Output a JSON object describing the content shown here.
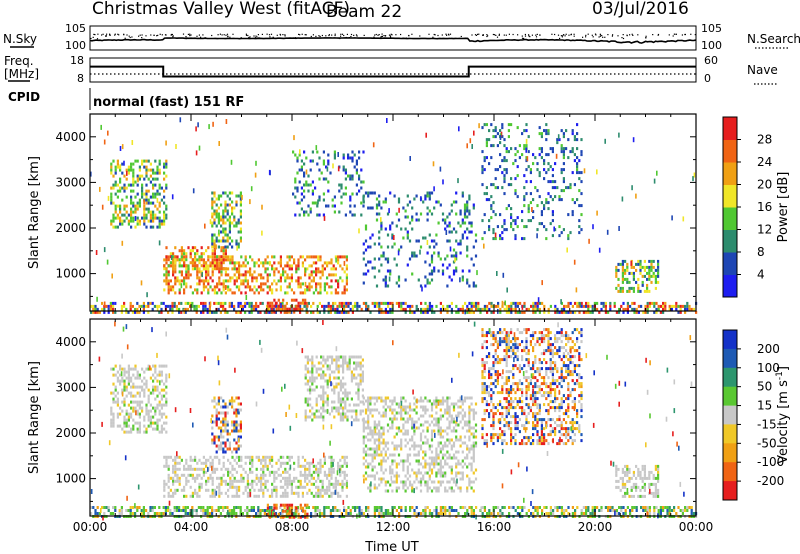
{
  "header": {
    "station": "Christmas Valley West (fitACF)",
    "beam": "Beam 22",
    "date": "03/Jul/2016"
  },
  "labels": {
    "nsky": "N.Sky",
    "nsearch": "N.Search",
    "freq": "Freq.",
    "freq_unit": "[MHz]",
    "nave": "Nave",
    "cpid": "CPID",
    "cpid_value": "normal (fast) 151 RF",
    "time_axis": "Time UT",
    "nsky_ticks": [
      "10^5",
      "10^0"
    ],
    "nsearch_ticks": [
      "10^5",
      "10^0"
    ],
    "freq_ticks": [
      "18",
      "8"
    ],
    "nave_ticks": [
      "60",
      "0"
    ]
  },
  "chart_data": [
    {
      "type": "line",
      "panel": "noise",
      "series": [
        {
          "name": "N.Sky",
          "style": "solid"
        },
        {
          "name": "N.Search",
          "style": "dotted"
        }
      ],
      "y_scale": "log",
      "ylim": [
        1,
        100000
      ]
    },
    {
      "type": "line",
      "panel": "frequency",
      "series": [
        {
          "name": "Freq.",
          "style": "solid",
          "steps": [
            [
              0,
              14.4
            ],
            [
              2.9,
              10.3
            ],
            [
              15.0,
              14.4
            ],
            [
              24.0,
              14.4
            ]
          ]
        },
        {
          "name": "Nave",
          "style": "dotted",
          "steps": [
            [
              0,
              20
            ],
            [
              24,
              20
            ]
          ]
        }
      ],
      "y_left": [
        8,
        18
      ],
      "y_right": [
        0,
        60
      ]
    },
    {
      "type": "heatmap",
      "panel": "power",
      "ylabel": "Slant Range [km]",
      "xlabel": "",
      "xlim": [
        0,
        24
      ],
      "ylim": [
        180,
        4500
      ],
      "x_ticks": [
        "00:00",
        "04:00",
        "08:00",
        "12:00",
        "16:00",
        "20:00",
        "00:00"
      ],
      "y_ticks": [
        1000,
        2000,
        3000,
        4000
      ],
      "colorbar": {
        "label": "Power [dB]",
        "ticks": [
          "4",
          "8",
          "12",
          "16",
          "20",
          "24",
          "28"
        ],
        "colors": [
          "#1e1ef0",
          "#1e46b4",
          "#2d8c6e",
          "#50c832",
          "#f0e628",
          "#f0a014",
          "#f06414",
          "#e61e1e"
        ]
      },
      "regions": [
        {
          "x": [
            0.0,
            24.0
          ],
          "y": [
            180,
            380
          ],
          "level": "mixed"
        },
        {
          "x": [
            0.8,
            3.0
          ],
          "y": [
            2000,
            3500
          ],
          "level": "moderate"
        },
        {
          "x": [
            2.9,
            5.4
          ],
          "y": [
            1100,
            1600
          ],
          "level": "high"
        },
        {
          "x": [
            2.9,
            10.2
          ],
          "y": [
            600,
            1400
          ],
          "level": "high"
        },
        {
          "x": [
            4.8,
            6.0
          ],
          "y": [
            1600,
            2800
          ],
          "level": "moderate"
        },
        {
          "x": [
            7.0,
            8.6
          ],
          "y": [
            180,
            450
          ],
          "level": "very high"
        },
        {
          "x": [
            8.0,
            10.8
          ],
          "y": [
            2300,
            3700
          ],
          "level": "low"
        },
        {
          "x": [
            10.8,
            15.3
          ],
          "y": [
            700,
            2800
          ],
          "level": "low"
        },
        {
          "x": [
            15.5,
            19.5
          ],
          "y": [
            1800,
            4300
          ],
          "level": "low"
        },
        {
          "x": [
            20.8,
            22.5
          ],
          "y": [
            600,
            1300
          ],
          "level": "moderate"
        }
      ]
    },
    {
      "type": "heatmap",
      "panel": "velocity",
      "ylabel": "Slant Range [km]",
      "xlabel": "Time UT",
      "xlim": [
        0,
        24
      ],
      "ylim": [
        180,
        4500
      ],
      "x_ticks": [
        "00:00",
        "04:00",
        "08:00",
        "12:00",
        "16:00",
        "20:00",
        "00:00"
      ],
      "y_ticks": [
        1000,
        2000,
        3000,
        4000
      ],
      "colorbar": {
        "label": "Velocity [m s^-1]",
        "ticks": [
          "200",
          "100",
          "50",
          "15",
          "-15",
          "-50",
          "-100",
          "-200"
        ],
        "colors": [
          "#1432c8",
          "#1e5ab4",
          "#2d966e",
          "#5ac832",
          "#c8c8c8",
          "#f0c828",
          "#f0a014",
          "#f06414",
          "#e61e1e"
        ]
      },
      "regions": [
        {
          "x": [
            0.0,
            24.0
          ],
          "y": [
            180,
            400
          ],
          "level": "mixed positive"
        },
        {
          "x": [
            0.8,
            3.0
          ],
          "y": [
            2000,
            3500
          ],
          "level": "ground scatter"
        },
        {
          "x": [
            2.9,
            10.2
          ],
          "y": [
            600,
            1500
          ],
          "level": "ground scatter"
        },
        {
          "x": [
            4.8,
            6.0
          ],
          "y": [
            1600,
            2800
          ],
          "level": "mixed"
        },
        {
          "x": [
            7.0,
            8.6
          ],
          "y": [
            180,
            450
          ],
          "level": "negative"
        },
        {
          "x": [
            8.5,
            10.8
          ],
          "y": [
            2300,
            3700
          ],
          "level": "ground scatter"
        },
        {
          "x": [
            10.8,
            15.3
          ],
          "y": [
            700,
            2800
          ],
          "level": "ground scatter"
        },
        {
          "x": [
            15.5,
            19.5
          ],
          "y": [
            1800,
            4300
          ],
          "level": "mixed"
        },
        {
          "x": [
            20.8,
            22.5
          ],
          "y": [
            600,
            1300
          ],
          "level": "ground scatter"
        }
      ]
    }
  ]
}
